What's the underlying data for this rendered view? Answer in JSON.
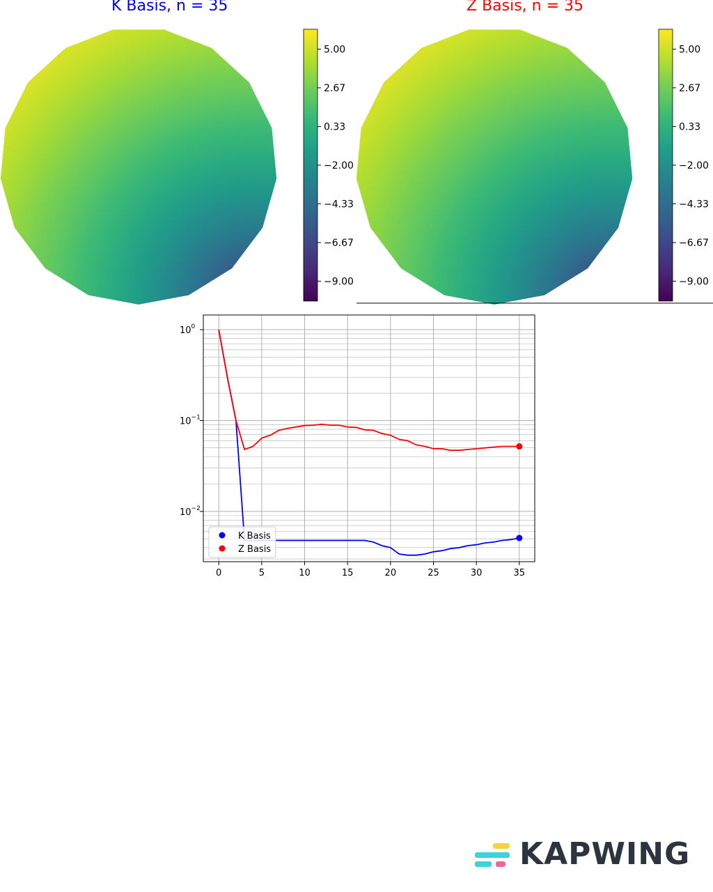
{
  "chart_data": [
    {
      "type": "heatmap",
      "title": "K Basis, n = 35",
      "title_color": "#0000ff",
      "colormap": "viridis",
      "colorbar": {
        "ticks": [
          "5.00",
          "2.67",
          "0.33",
          "−2.00",
          "−4.33",
          "−6.67",
          "−9.00"
        ],
        "range": [
          -10.2,
          6.2
        ]
      },
      "field": {
        "shape": "polygon-disk",
        "high_corner": "upper-left",
        "low_corner": "lower-right",
        "low": -10.2,
        "high": 6.2
      }
    },
    {
      "type": "heatmap",
      "title": "Z Basis, n = 35",
      "title_color": "#ff0000",
      "colormap": "viridis",
      "colorbar": {
        "ticks": [
          "5.00",
          "2.67",
          "0.33",
          "−2.00",
          "−4.33",
          "−6.67",
          "−9.00"
        ],
        "range": [
          -10.2,
          6.2
        ]
      },
      "field": {
        "shape": "polygon-disk",
        "high_corner": "upper-left",
        "low_corner": "lower-right",
        "low": -10.2,
        "high": 6.2
      }
    },
    {
      "type": "line",
      "yscale": "log",
      "xlim": [
        -1.8,
        36.8
      ],
      "ylim": [
        0.0028,
        1.45
      ],
      "grid": "on",
      "xticks": [
        0,
        5,
        10,
        15,
        20,
        25,
        30,
        35
      ],
      "yticks": [
        {
          "value": 1,
          "base": "10",
          "exp": "0"
        },
        {
          "value": 0.1,
          "base": "10",
          "exp": "−1"
        },
        {
          "value": 0.01,
          "base": "10",
          "exp": "−2"
        }
      ],
      "legend": "lower-left",
      "series": [
        {
          "name": "K Basis",
          "color": "#0000ff",
          "x": [
            0,
            1,
            2,
            3,
            4,
            5,
            6,
            7,
            8,
            9,
            10,
            11,
            12,
            13,
            14,
            15,
            16,
            17,
            18,
            19,
            20,
            21,
            22,
            23,
            24,
            25,
            26,
            27,
            28,
            29,
            30,
            31,
            32,
            33,
            34,
            35
          ],
          "y": [
            1.0,
            0.3,
            0.1,
            0.0048,
            0.0048,
            0.0048,
            0.0048,
            0.0048,
            0.0048,
            0.0048,
            0.0048,
            0.0048,
            0.0048,
            0.0048,
            0.0048,
            0.0048,
            0.0048,
            0.0048,
            0.0046,
            0.0042,
            0.004,
            0.0034,
            0.0033,
            0.0033,
            0.0034,
            0.0036,
            0.0037,
            0.0039,
            0.004,
            0.0042,
            0.0043,
            0.0045,
            0.0046,
            0.0048,
            0.0049,
            0.0051
          ],
          "end_marker": true
        },
        {
          "name": "Z Basis",
          "color": "#ff0000",
          "x": [
            0,
            1,
            2,
            3,
            4,
            5,
            6,
            7,
            8,
            9,
            10,
            11,
            12,
            13,
            14,
            15,
            16,
            17,
            18,
            19,
            20,
            21,
            22,
            23,
            24,
            25,
            26,
            27,
            28,
            29,
            30,
            31,
            32,
            33,
            34,
            35
          ],
          "y": [
            1.0,
            0.3,
            0.1,
            0.048,
            0.052,
            0.064,
            0.069,
            0.078,
            0.082,
            0.085,
            0.088,
            0.089,
            0.091,
            0.089,
            0.089,
            0.085,
            0.084,
            0.079,
            0.078,
            0.072,
            0.069,
            0.062,
            0.06,
            0.054,
            0.052,
            0.049,
            0.049,
            0.047,
            0.047,
            0.048,
            0.049,
            0.05,
            0.051,
            0.052,
            0.052,
            0.052
          ],
          "end_marker": true
        }
      ]
    }
  ],
  "branding": {
    "logo_text": "KAPWING",
    "stripe_colors": [
      "#f2d43d",
      "#3fd2d9",
      "#e76b9a"
    ]
  }
}
